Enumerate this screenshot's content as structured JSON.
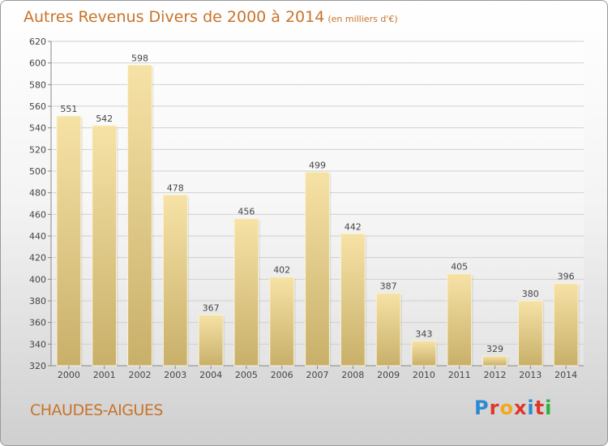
{
  "title": "Autres Revenus Divers de 2000 à 2014",
  "unit_note": "(en milliers d'€)",
  "place_name": "CHAUDES-AIGUES",
  "logo": {
    "text": "Proxiti",
    "letters": [
      "P",
      "r",
      "o",
      "x",
      "i",
      "t",
      "i"
    ],
    "colors": [
      "#2a8ad4",
      "#e0362a",
      "#f2a81c",
      "#e0362a",
      "#2a8ad4",
      "#e0362a",
      "#2ab33a"
    ]
  },
  "colors": {
    "title": "#c8732a",
    "bar_top": "#f7e2a6",
    "bar_bottom": "#c8b06a",
    "label": "#444444"
  },
  "chart_data": {
    "type": "bar",
    "categories": [
      "2000",
      "2001",
      "2002",
      "2003",
      "2004",
      "2005",
      "2006",
      "2007",
      "2008",
      "2009",
      "2010",
      "2011",
      "2012",
      "2013",
      "2014"
    ],
    "values": [
      551,
      542,
      598,
      478,
      367,
      456,
      402,
      499,
      442,
      387,
      343,
      405,
      329,
      380,
      396
    ],
    "ylim": [
      320,
      620
    ],
    "yticks": [
      320,
      340,
      360,
      380,
      400,
      420,
      440,
      460,
      480,
      500,
      520,
      540,
      560,
      580,
      600,
      620
    ],
    "grid": true,
    "title": "Autres Revenus Divers de 2000 à 2014",
    "xlabel": "",
    "ylabel": ""
  }
}
